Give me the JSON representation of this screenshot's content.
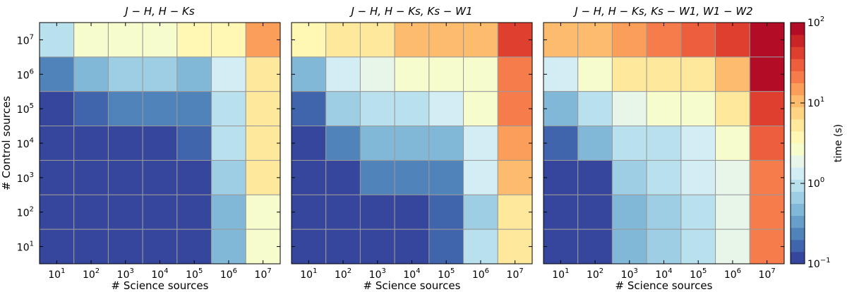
{
  "chart_data": [
    {
      "type": "heatmap",
      "title": "J − H, H − Ks",
      "xlabel": "# Science sources",
      "ylabel": "# Control sources",
      "x_tick_labels": [
        {
          "b": "10",
          "e": "1"
        },
        {
          "b": "10",
          "e": "2"
        },
        {
          "b": "10",
          "e": "3"
        },
        {
          "b": "10",
          "e": "4"
        },
        {
          "b": "10",
          "e": "5"
        },
        {
          "b": "10",
          "e": "6"
        },
        {
          "b": "10",
          "e": "7"
        }
      ],
      "y_tick_labels": [
        {
          "b": "10",
          "e": "1"
        },
        {
          "b": "10",
          "e": "2"
        },
        {
          "b": "10",
          "e": "3"
        },
        {
          "b": "10",
          "e": "4"
        },
        {
          "b": "10",
          "e": "5"
        },
        {
          "b": "10",
          "e": "6"
        },
        {
          "b": "10",
          "e": "7"
        }
      ],
      "x": [
        10,
        100,
        1000,
        10000,
        100000,
        1000000,
        10000000
      ],
      "y": [
        10,
        100,
        1000,
        10000,
        100000,
        1000000,
        10000000
      ],
      "values_rows_top_to_bottom": [
        [
          1.1,
          2.8,
          2.8,
          2.8,
          3.3,
          3.3,
          13
        ],
        [
          0.28,
          0.5,
          0.6,
          0.6,
          0.55,
          1.2,
          6
        ],
        [
          0.12,
          0.18,
          0.24,
          0.24,
          0.24,
          0.8,
          6
        ],
        [
          0.12,
          0.12,
          0.12,
          0.12,
          0.18,
          1.0,
          4.5
        ],
        [
          0.12,
          0.12,
          0.12,
          0.12,
          0.12,
          0.65,
          4.5
        ],
        [
          0.12,
          0.12,
          0.12,
          0.12,
          0.12,
          0.4,
          3.0
        ],
        [
          0.12,
          0.12,
          0.12,
          0.12,
          0.12,
          0.45,
          2.7
        ]
      ]
    },
    {
      "type": "heatmap",
      "title": "J − H, H − Ks, Ks − W1",
      "xlabel": "# Science sources",
      "ylabel": "",
      "x_tick_labels": [
        {
          "b": "10",
          "e": "1"
        },
        {
          "b": "10",
          "e": "2"
        },
        {
          "b": "10",
          "e": "3"
        },
        {
          "b": "10",
          "e": "4"
        },
        {
          "b": "10",
          "e": "5"
        },
        {
          "b": "10",
          "e": "6"
        },
        {
          "b": "10",
          "e": "7"
        }
      ],
      "x": [
        10,
        100,
        1000,
        10000,
        100000,
        1000000,
        10000000
      ],
      "y": [
        10,
        100,
        1000,
        10000,
        100000,
        1000000,
        10000000
      ],
      "values_rows_top_to_bottom": [
        [
          3.5,
          4.5,
          6,
          9,
          11,
          11,
          48
        ],
        [
          0.55,
          1.2,
          1.6,
          2.4,
          2.4,
          3.0,
          25
        ],
        [
          0.18,
          0.6,
          0.8,
          0.8,
          1.2,
          2.4,
          25
        ],
        [
          0.12,
          0.24,
          0.4,
          0.42,
          0.5,
          1.5,
          16
        ],
        [
          0.12,
          0.12,
          0.2,
          0.2,
          0.28,
          1.2,
          11
        ],
        [
          0.12,
          0.12,
          0.12,
          0.12,
          0.18,
          0.75,
          6
        ],
        [
          0.12,
          0.12,
          0.12,
          0.12,
          0.18,
          0.8,
          6
        ]
      ]
    },
    {
      "type": "heatmap",
      "title": "J − H, H − Ks, Ks − W1, W1 − W2",
      "xlabel": "# Science sources",
      "ylabel": "",
      "x_tick_labels": [
        {
          "b": "10",
          "e": "1"
        },
        {
          "b": "10",
          "e": "2"
        },
        {
          "b": "10",
          "e": "3"
        },
        {
          "b": "10",
          "e": "4"
        },
        {
          "b": "10",
          "e": "5"
        },
        {
          "b": "10",
          "e": "6"
        },
        {
          "b": "10",
          "e": "7"
        }
      ],
      "x": [
        10,
        100,
        1000,
        10000,
        100000,
        1000000,
        10000000
      ],
      "y": [
        10,
        100,
        1000,
        10000,
        100000,
        1000000,
        10000000
      ],
      "values_rows_top_to_bottom": [
        [
          11,
          11,
          16,
          20,
          30,
          45,
          90
        ],
        [
          1.2,
          2.6,
          5,
          5,
          6,
          11,
          90
        ],
        [
          0.45,
          0.8,
          1.6,
          2.4,
          3,
          4.5,
          45
        ],
        [
          0.18,
          0.5,
          1.0,
          1.0,
          1.2,
          3.0,
          35
        ],
        [
          0.12,
          0.12,
          0.6,
          1.0,
          1.2,
          2.2,
          25
        ],
        [
          0.12,
          0.12,
          0.55,
          0.6,
          0.8,
          2.0,
          25
        ],
        [
          0.12,
          0.12,
          0.55,
          0.6,
          0.8,
          2.2,
          25
        ]
      ]
    }
  ],
  "colorbar": {
    "label": "time (s)",
    "scale": "log",
    "range": [
      0.1,
      100
    ],
    "n_levels": 20,
    "tick_labels": [
      {
        "b": "10",
        "e": "−1"
      },
      {
        "b": "10",
        "e": "0"
      },
      {
        "b": "10",
        "e": "1"
      },
      {
        "b": "10",
        "e": "2"
      }
    ],
    "tick_values": [
      0.1,
      1,
      10,
      100
    ]
  },
  "colors": {
    "cell_border": "#999999",
    "palette": [
      "#313695",
      "#4575b4",
      "#74add1",
      "#abd9e9",
      "#e0f3f8",
      "#ffffbf",
      "#fee090",
      "#fdae61",
      "#f46d43",
      "#d73027",
      "#a50026"
    ]
  }
}
